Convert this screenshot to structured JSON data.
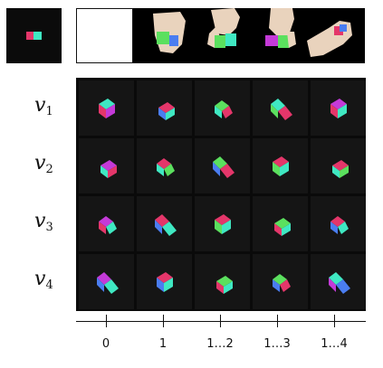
{
  "rows": [
    {
      "var": "v",
      "sub": "1"
    },
    {
      "var": "v",
      "sub": "2"
    },
    {
      "var": "v",
      "sub": "3"
    },
    {
      "var": "v",
      "sub": "4"
    }
  ],
  "axis": {
    "ticks": [
      "0",
      "1",
      "1…2",
      "1…3",
      "1…4"
    ]
  },
  "colors": {
    "cube_red": "#e4366a",
    "cube_teal": "#3fe8c2",
    "cube_green": "#5be05e",
    "cube_blue": "#4a7df0",
    "cube_magenta": "#c43ad8",
    "skin": "#e9d3bd",
    "background": "#0a0a0a"
  },
  "icons": {
    "reference": "block-pair-icon",
    "hands": "robot-hand-icon",
    "cell": "block-pair-icon"
  }
}
